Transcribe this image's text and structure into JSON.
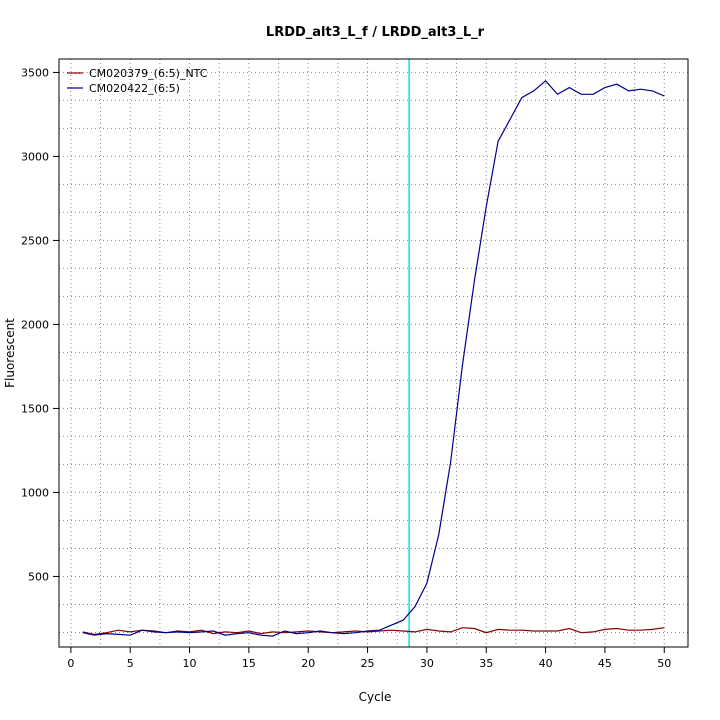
{
  "chart_data": {
    "type": "line",
    "title": "LRDD_alt3_L_f / LRDD_alt3_L_r",
    "xlabel": "Cycle",
    "ylabel": "Fluorescent",
    "xlim": [
      -1,
      52
    ],
    "ylim": [
      80,
      3580
    ],
    "x_ticks": [
      0,
      5,
      10,
      15,
      20,
      25,
      30,
      35,
      40,
      45,
      50
    ],
    "y_ticks": [
      500,
      1000,
      1500,
      2000,
      2500,
      3000,
      3500
    ],
    "grid": true,
    "legend_position": "top-left",
    "threshold_cycle": 28.5,
    "threshold_color": "#00e5ee",
    "x": [
      1,
      2,
      3,
      4,
      5,
      6,
      7,
      8,
      9,
      10,
      11,
      12,
      13,
      14,
      15,
      16,
      17,
      18,
      19,
      20,
      21,
      22,
      23,
      24,
      25,
      26,
      27,
      28,
      29,
      30,
      31,
      32,
      33,
      34,
      35,
      36,
      37,
      38,
      39,
      40,
      41,
      42,
      43,
      44,
      45,
      46,
      47,
      48,
      49,
      50
    ],
    "series": [
      {
        "name": "CM020379_(6:5)_NTC",
        "color": "#8b0000",
        "values": [
          170,
          155,
          165,
          180,
          170,
          180,
          175,
          165,
          175,
          170,
          180,
          160,
          170,
          165,
          175,
          160,
          170,
          165,
          170,
          175,
          170,
          165,
          170,
          175,
          170,
          175,
          180,
          175,
          170,
          185,
          175,
          170,
          195,
          190,
          165,
          185,
          180,
          180,
          175,
          175,
          175,
          190,
          165,
          170,
          185,
          190,
          180,
          180,
          185,
          195
        ]
      },
      {
        "name": "CM020422_(6:5)",
        "color": "#00008b",
        "values": [
          165,
          150,
          160,
          155,
          150,
          180,
          170,
          165,
          170,
          165,
          170,
          175,
          150,
          160,
          165,
          150,
          145,
          175,
          160,
          165,
          175,
          165,
          160,
          165,
          175,
          180,
          210,
          240,
          320,
          460,
          750,
          1180,
          1760,
          2260,
          2700,
          3090,
          3220,
          3350,
          3390,
          3450,
          3370,
          3410,
          3370,
          3370,
          3410,
          3430,
          3390,
          3400,
          3390,
          3360
        ]
      }
    ]
  }
}
